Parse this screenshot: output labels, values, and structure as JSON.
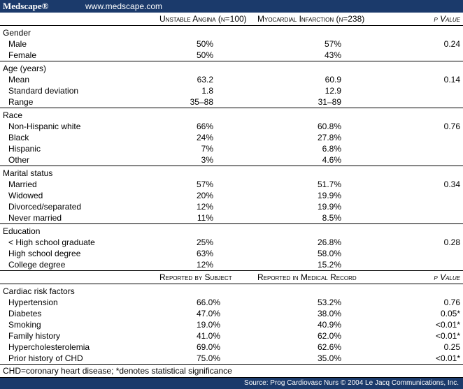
{
  "header": {
    "brand": "Medscape®",
    "url": "www.medscape.com"
  },
  "table1": {
    "columns": [
      "Unstable Angina (n=100)",
      "Myocardial Infarction (n=238)",
      "p Value"
    ],
    "sections": [
      {
        "title": "Gender",
        "p": "0.24",
        "rows": [
          [
            "Male",
            "50%",
            "57%"
          ],
          [
            "Female",
            "50%",
            "43%"
          ]
        ]
      },
      {
        "title": "Age (years)",
        "p": "0.14",
        "rows": [
          [
            "Mean",
            "63.2",
            "60.9"
          ],
          [
            "Standard deviation",
            "1.8",
            "12.9"
          ],
          [
            "Range",
            "35–88",
            "31–89"
          ]
        ]
      },
      {
        "title": "Race",
        "p": "0.76",
        "rows": [
          [
            "Non-Hispanic white",
            "66%",
            "60.8%"
          ],
          [
            "Black",
            "24%",
            "27.8%"
          ],
          [
            "Hispanic",
            "7%",
            "6.8%"
          ],
          [
            "Other",
            "3%",
            "4.6%"
          ]
        ]
      },
      {
        "title": "Marital status",
        "p": "0.34",
        "rows": [
          [
            "Married",
            "57%",
            "51.7%"
          ],
          [
            "Widowed",
            "20%",
            "19.9%"
          ],
          [
            "Divorced/separated",
            "12%",
            "19.9%"
          ],
          [
            "Never married",
            "11%",
            "8.5%"
          ]
        ]
      },
      {
        "title": "Education",
        "p": "0.28",
        "rows": [
          [
            "< High school graduate",
            "25%",
            "26.8%"
          ],
          [
            "High school degree",
            "63%",
            "58.0%"
          ],
          [
            "College degree",
            "12%",
            "15.2%"
          ]
        ]
      }
    ]
  },
  "table2": {
    "columns": [
      "Reported by Subject",
      "Reported in Medical Record",
      "p Value"
    ],
    "title": "Cardiac risk factors",
    "rows": [
      [
        "Hypertension",
        "66.0%",
        "53.2%",
        "0.76"
      ],
      [
        "Diabetes",
        "47.0%",
        "38.0%",
        "0.05*"
      ],
      [
        "Smoking",
        "19.0%",
        "40.9%",
        "<0.01*"
      ],
      [
        "Family history",
        "41.0%",
        "62.0%",
        "<0.01*"
      ],
      [
        "Hypercholesterolemia",
        "69.0%",
        "62.6%",
        "0.25"
      ],
      [
        "Prior history of CHD",
        "75.0%",
        "35.0%",
        "<0.01*"
      ]
    ]
  },
  "footnote": "CHD=coronary heart disease; *denotes statistical significance",
  "source": "Source: Prog Cardiovasc Nurs © 2004 Le Jacq Communications, Inc."
}
